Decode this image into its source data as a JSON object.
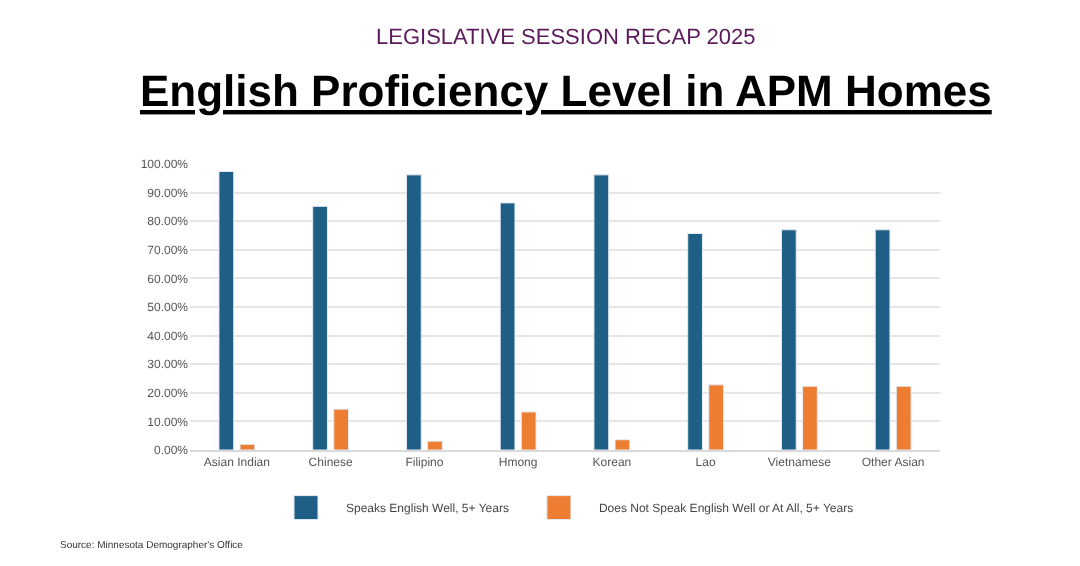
{
  "chart_data": {
    "type": "bar",
    "title": "English Proficiency Level in APM Homes",
    "subtitle": "LEGISLATIVE SESSION RECAP 2025",
    "categories": [
      "Asian Indian",
      "Chinese",
      "Filipino",
      "Hmong",
      "Korean",
      "Lao",
      "Vietnamese",
      "Other Asian"
    ],
    "series": [
      {
        "name": "Speaks English Well, 5+ Years",
        "color": "#1f5f85",
        "values": [
          97.4,
          85.2,
          96.2,
          86.4,
          96.2,
          75.7,
          77.0,
          77.0
        ]
      },
      {
        "name": "Does Not Speak English Well or At All, 5+ Years",
        "color": "#ed7d31",
        "values": [
          2.0,
          14.3,
          3.1,
          13.3,
          3.6,
          22.8,
          22.3,
          22.3
        ]
      }
    ],
    "ylim": [
      0,
      100
    ],
    "yticks": [
      {
        "value": 0,
        "label": "0.00%"
      },
      {
        "value": 10,
        "label": "10.00%"
      },
      {
        "value": 20,
        "label": "20.00%"
      },
      {
        "value": 30,
        "label": "30.00%"
      },
      {
        "value": 40,
        "label": "40.00%"
      },
      {
        "value": 50,
        "label": "50.00%"
      },
      {
        "value": 60,
        "label": "60.00%"
      },
      {
        "value": 70,
        "label": "70.00%"
      },
      {
        "value": 80,
        "label": "80.00%"
      },
      {
        "value": 90,
        "label": "90.00%"
      },
      {
        "value": 100,
        "label": "100.00%"
      }
    ],
    "grid": "y",
    "legend": "bottom",
    "annotations": [
      "Source: Minnesota Demographer's Office"
    ]
  }
}
